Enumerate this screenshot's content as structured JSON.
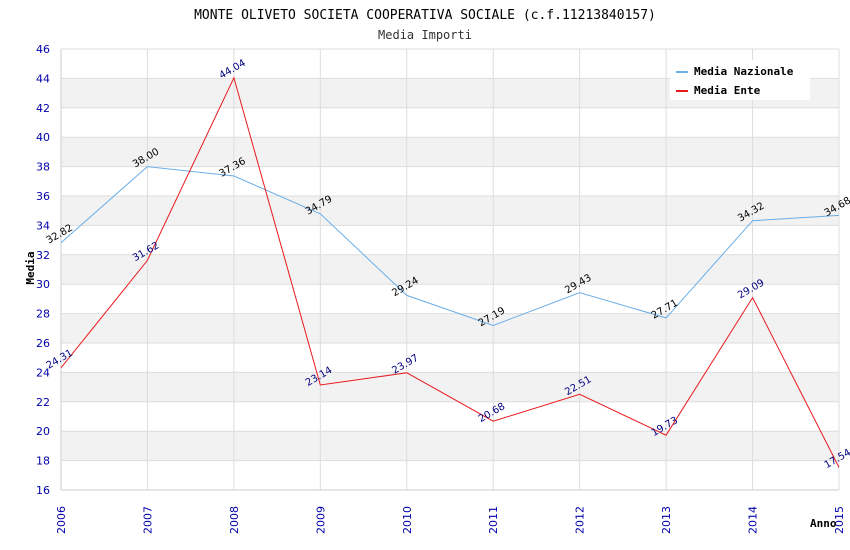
{
  "chart_data": {
    "type": "line",
    "title": "MONTE OLIVETO SOCIETA COOPERATIVA SOCIALE (c.f.11213840157)",
    "subtitle": "Media Importi",
    "xlabel": "Anno",
    "ylabel": "Media",
    "ylim": [
      16,
      46
    ],
    "yticks": [
      "16",
      "18",
      "20",
      "22",
      "24",
      "26",
      "28",
      "30",
      "32",
      "34",
      "36",
      "38",
      "40",
      "42",
      "44",
      "46"
    ],
    "categories": [
      "2006",
      "2007",
      "2008",
      "2009",
      "2010",
      "2011",
      "2012",
      "2013",
      "2014",
      "2015"
    ],
    "grid": true,
    "legend_position": "top-right",
    "series": [
      {
        "name": "Media Nazionale",
        "color": "#6aaee8",
        "values": [
          32.82,
          38.0,
          37.36,
          34.79,
          29.24,
          27.19,
          29.43,
          27.71,
          34.32,
          34.68
        ],
        "labels": [
          "32.82",
          "38.00",
          "37.36",
          "34.79",
          "29.24",
          "27.19",
          "29.43",
          "27.71",
          "34.32",
          "34.68"
        ]
      },
      {
        "name": "Media Ente",
        "color": "#e8191c",
        "values": [
          24.31,
          31.62,
          44.04,
          23.14,
          23.97,
          20.68,
          22.51,
          19.73,
          29.09,
          17.54
        ],
        "labels": [
          "24.31",
          "31.62",
          "44.04",
          "23.14",
          "23.97",
          "20.68",
          "22.51",
          "19.73",
          "29.09",
          "17.54"
        ]
      }
    ]
  }
}
